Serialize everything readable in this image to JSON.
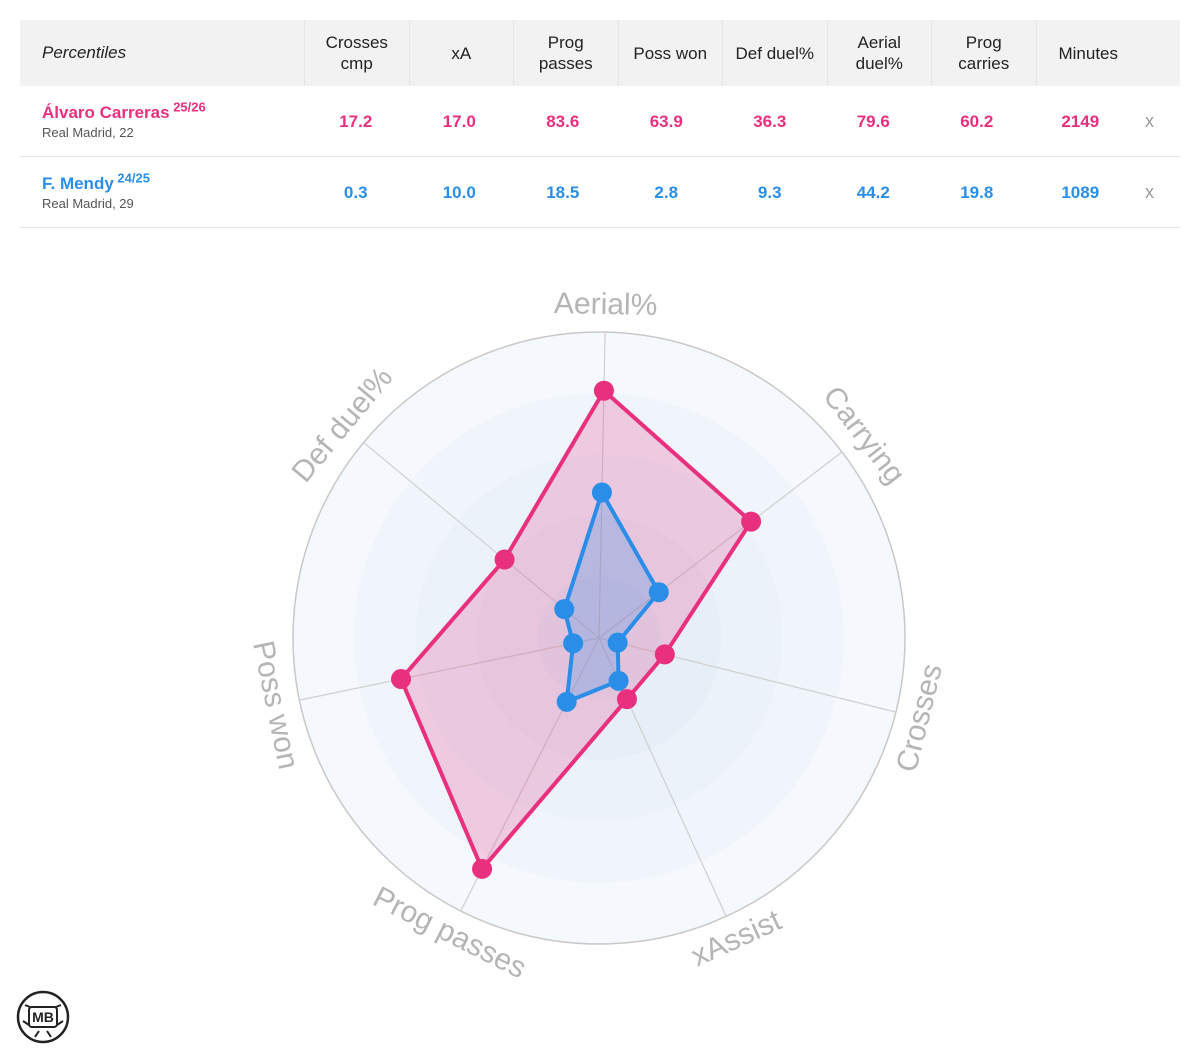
{
  "table": {
    "header_title": "Percentiles",
    "columns": [
      [
        "Crosses",
        "cmp"
      ],
      [
        "xA"
      ],
      [
        "Prog",
        "passes"
      ],
      [
        "Poss won"
      ],
      [
        "Def duel%"
      ],
      [
        "Aerial",
        "duel%"
      ],
      [
        "Prog",
        "carries"
      ],
      [
        "Minutes"
      ]
    ],
    "close_label": "x"
  },
  "players": [
    {
      "name": "Álvaro Carreras",
      "season": "25/26",
      "info": "Real Madrid, 22",
      "color": "#e8307e",
      "values": [
        "17.2",
        "17.0",
        "83.6",
        "63.9",
        "36.3",
        "79.6",
        "60.2",
        "2149"
      ]
    },
    {
      "name": "F. Mendy",
      "season": "24/25",
      "info": "Real Madrid, 29",
      "color": "#2a8ee8",
      "values": [
        "0.3",
        "10.0",
        "18.5",
        "2.8",
        "9.3",
        "44.2",
        "19.8",
        "1089"
      ]
    }
  ],
  "logo_text": "MB",
  "chart_data": {
    "type": "radar",
    "axes": [
      "Aerial%",
      "Carrying",
      "Crosses",
      "xAssist",
      "Prog passes",
      "Poss won",
      "Def duel%"
    ],
    "range": [
      0,
      100
    ],
    "rings": 5,
    "series": [
      {
        "name": "Álvaro Carreras",
        "color": "#e8307e",
        "values": [
          79.6,
          60.2,
          17.2,
          17.0,
          83.6,
          63.9,
          36.3
        ]
      },
      {
        "name": "F. Mendy",
        "color": "#2a8ee8",
        "values": [
          44.2,
          19.8,
          0.3,
          10.0,
          18.5,
          2.8,
          9.3
        ]
      }
    ]
  }
}
